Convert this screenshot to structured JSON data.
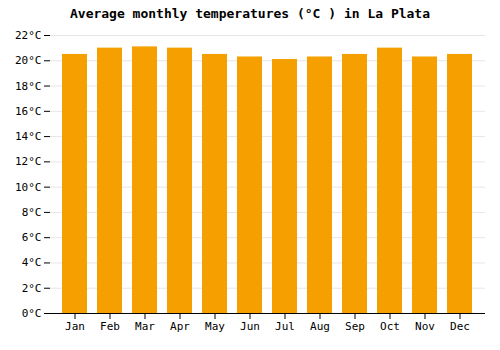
{
  "chart_data": {
    "type": "bar",
    "title": "Average monthly temperatures (°C ) in La Plata",
    "categories": [
      "Jan",
      "Feb",
      "Mar",
      "Apr",
      "May",
      "Jun",
      "Jul",
      "Aug",
      "Sep",
      "Oct",
      "Nov",
      "Dec"
    ],
    "values": [
      20.5,
      21.0,
      21.1,
      21.0,
      20.5,
      20.3,
      20.1,
      20.3,
      20.5,
      21.0,
      20.3,
      20.5
    ],
    "color": "#F5A000",
    "ylim": [
      0,
      22
    ],
    "yticks": [
      {
        "value": 0,
        "label": "0°C"
      },
      {
        "value": 2,
        "label": "2°C"
      },
      {
        "value": 4,
        "label": "4°C"
      },
      {
        "value": 6,
        "label": "6°C"
      },
      {
        "value": 8,
        "label": "8°C"
      },
      {
        "value": 10,
        "label": "10°C"
      },
      {
        "value": 12,
        "label": "12°C"
      },
      {
        "value": 14,
        "label": "14°C"
      },
      {
        "value": 16,
        "label": "16°C"
      },
      {
        "value": 18,
        "label": "18°C"
      },
      {
        "value": 20,
        "label": "20°C"
      },
      {
        "value": 22,
        "label": "22°C"
      }
    ],
    "grid": true
  }
}
